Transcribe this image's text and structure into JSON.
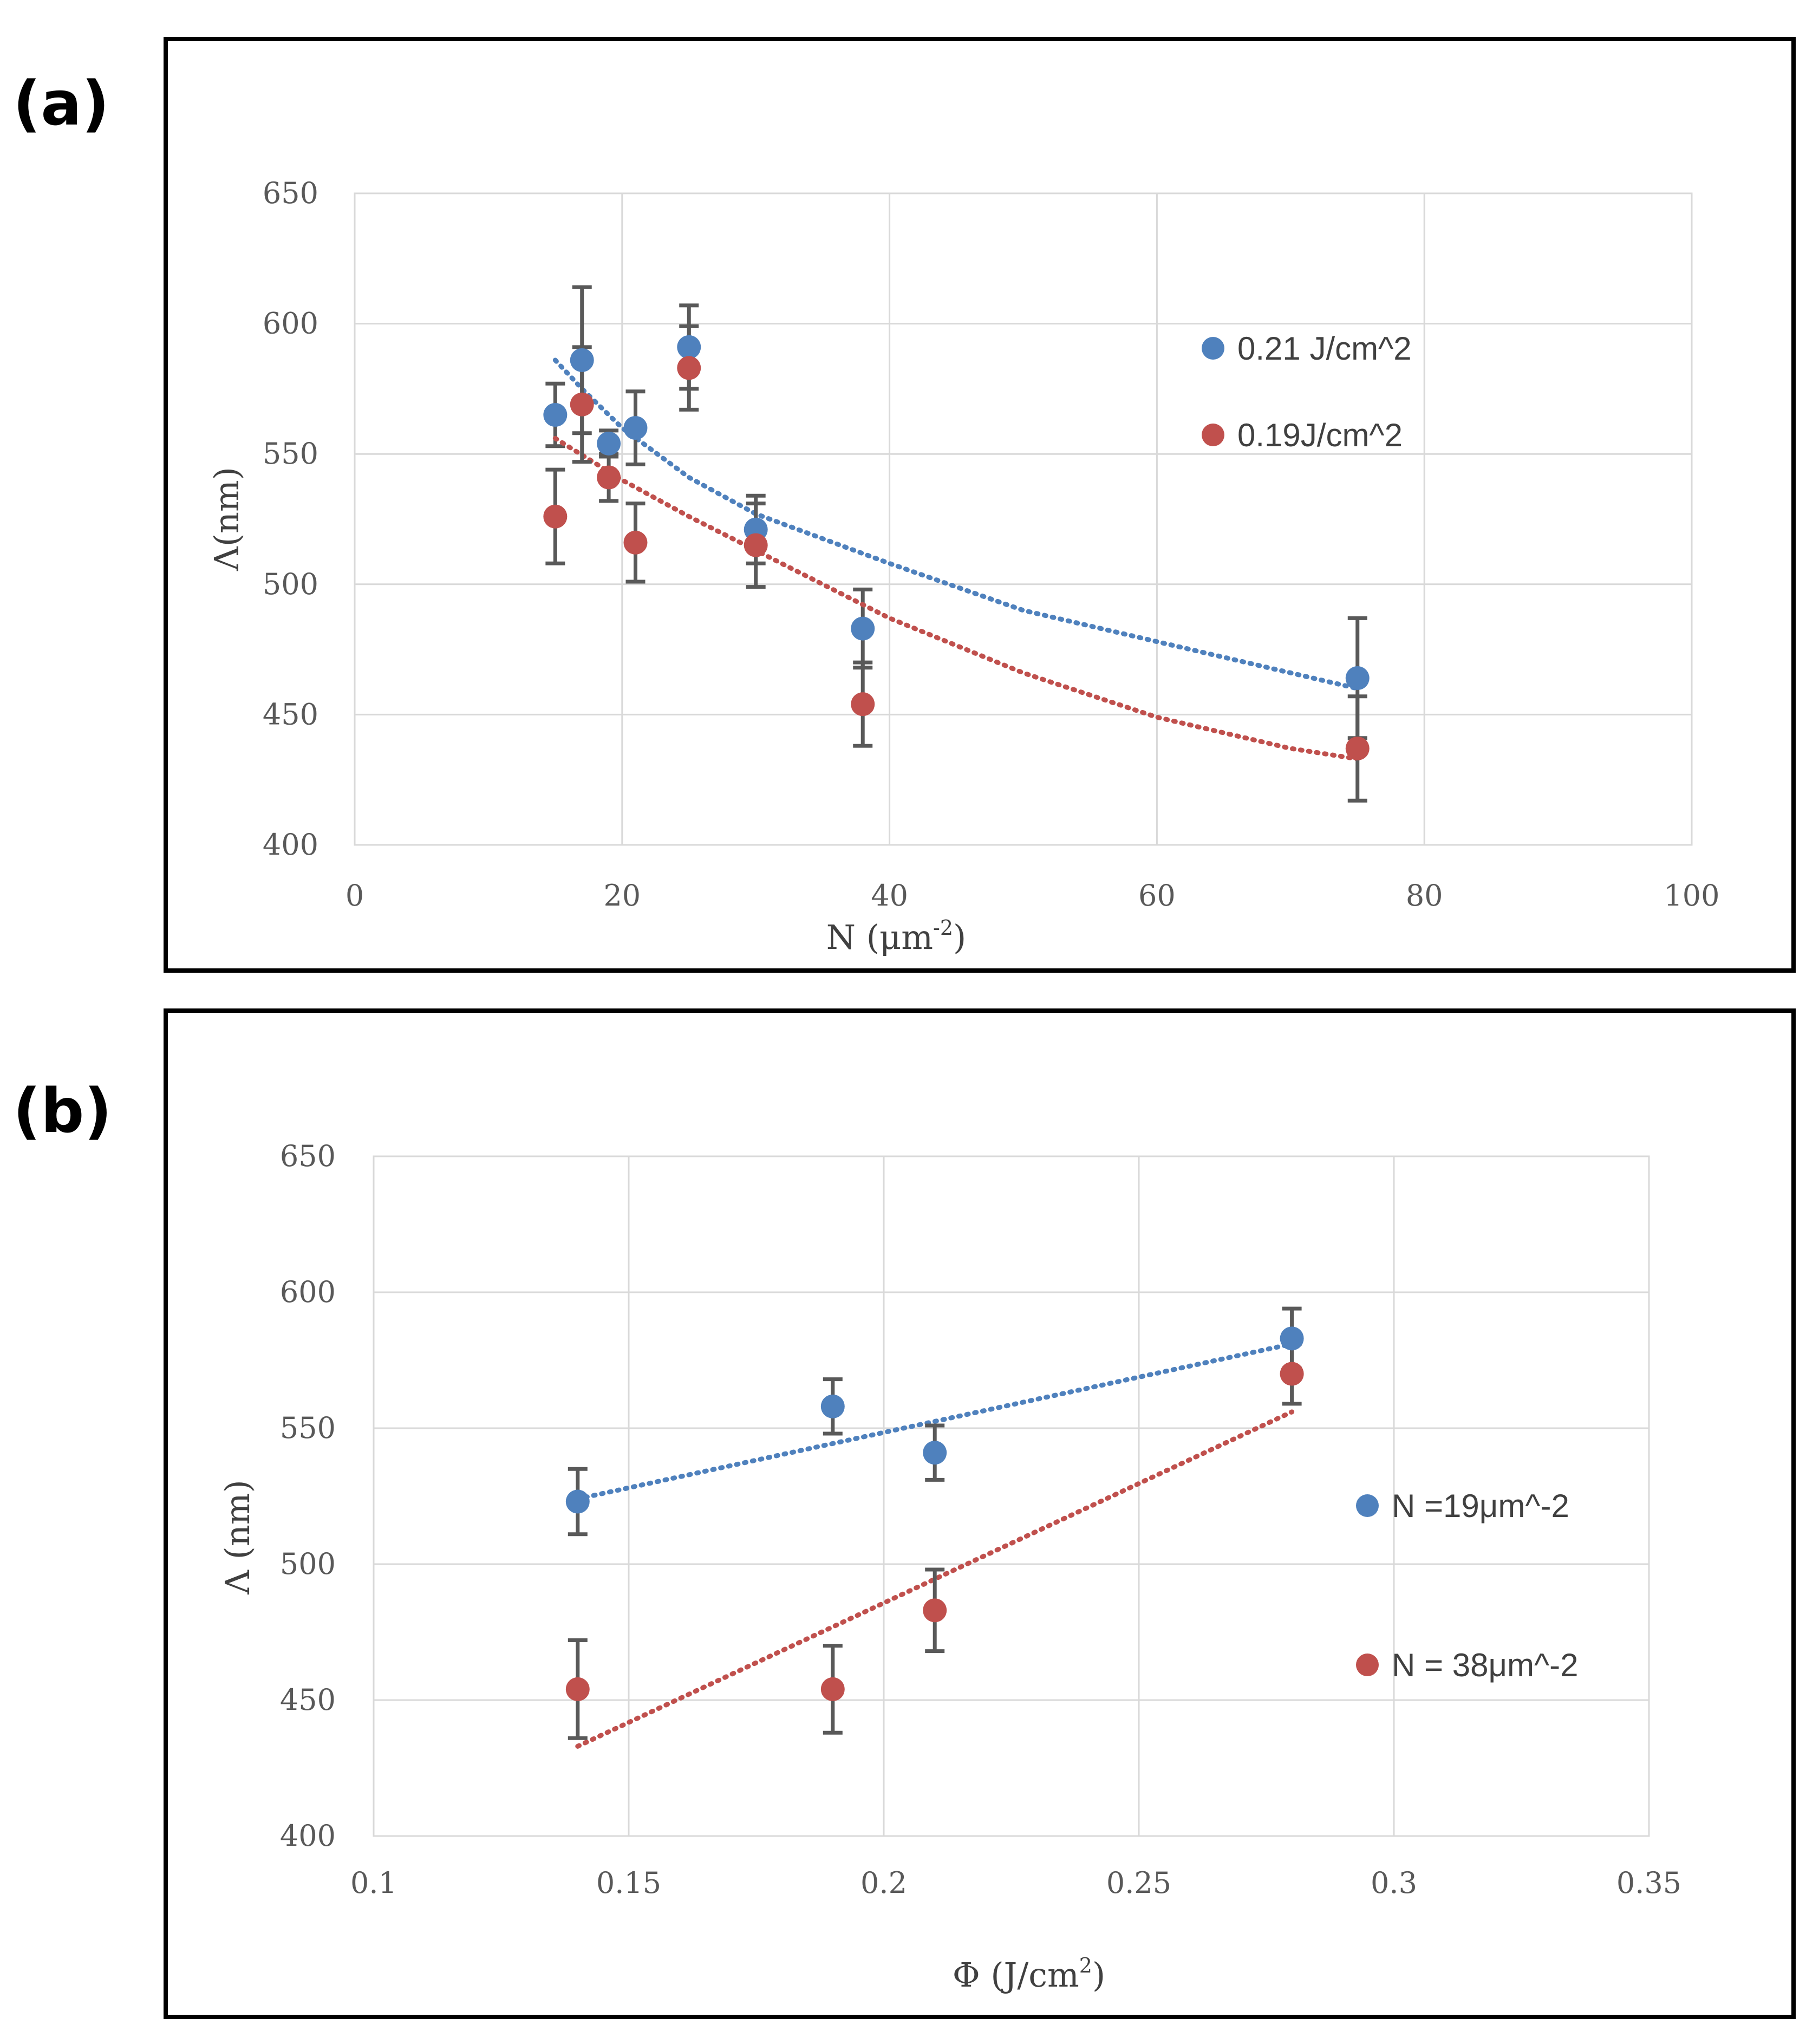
{
  "colors": {
    "blue": "#4f81bd",
    "red": "#c0504d",
    "error": "#595959"
  },
  "chart_data": [
    {
      "type": "scatter",
      "panel_label": "(a)",
      "xlabel_main": "N (μm",
      "xlabel_sup": "-2",
      "xlabel_end": ")",
      "ylabel": "Λ(nm)",
      "xlim": [
        0,
        100
      ],
      "ylim": [
        400,
        650
      ],
      "xticks": [
        0,
        20,
        40,
        60,
        80,
        100
      ],
      "yticks": [
        400,
        450,
        500,
        550,
        600,
        650
      ],
      "grid": true,
      "legend_position": "right",
      "series": [
        {
          "name": "0.21 J/cm^2",
          "color": "#4f81bd",
          "x": [
            15,
            17,
            19,
            21,
            25,
            30,
            38,
            75
          ],
          "y": [
            565,
            586,
            554,
            560,
            591,
            521,
            483,
            464
          ],
          "err_upper": [
            12,
            28,
            5,
            14,
            16,
            13,
            15,
            23
          ],
          "err_lower": [
            12,
            28,
            5,
            14,
            16,
            13,
            15,
            23
          ],
          "trend": {
            "kind": "power",
            "x": [
              15,
              17,
              20,
              25,
              30,
              40,
              50,
              60,
              75
            ],
            "y": [
              586,
              575,
              560,
              541,
              527,
              508,
              490,
              478,
              460
            ]
          }
        },
        {
          "name": "0.19J/cm^2",
          "color": "#c0504d",
          "x": [
            15,
            17,
            19,
            21,
            25,
            30,
            38,
            75
          ],
          "y": [
            526,
            569,
            541,
            516,
            583,
            515,
            454,
            437
          ],
          "err_upper": [
            18,
            22,
            9,
            15,
            16,
            16,
            16,
            20
          ],
          "err_lower": [
            18,
            22,
            9,
            15,
            16,
            16,
            16,
            20
          ],
          "trend": {
            "kind": "polynomial",
            "x": [
              15,
              20,
              25,
              30,
              40,
              50,
              60,
              70,
              75
            ],
            "y": [
              556,
              540,
              526,
              513,
              487,
              466,
              449,
              437,
              433
            ]
          }
        }
      ]
    },
    {
      "type": "scatter",
      "panel_label": "(b)",
      "xlabel_main": "Φ (J/cm",
      "xlabel_sup": "2",
      "xlabel_end": ")",
      "ylabel": "Λ  (nm)",
      "xlim": [
        0.1,
        0.35
      ],
      "ylim": [
        400,
        650
      ],
      "xticks": [
        "0.1",
        "0.15",
        "0.2",
        "0.25",
        "0.3",
        "0.35"
      ],
      "yticks": [
        400,
        450,
        500,
        550,
        600,
        650
      ],
      "grid": true,
      "legend_position": "right",
      "series": [
        {
          "name": "N =19μm^-2",
          "color": "#4f81bd",
          "x": [
            0.14,
            0.19,
            0.21,
            0.28
          ],
          "y": [
            523,
            558,
            541,
            583
          ],
          "err_upper": [
            12,
            10,
            10,
            11
          ],
          "err_lower": [
            12,
            10,
            10,
            11
          ],
          "trend": {
            "kind": "linear",
            "x": [
              0.14,
              0.28
            ],
            "y": [
              524,
              581
            ]
          }
        },
        {
          "name": "N = 38μm^-2",
          "color": "#c0504d",
          "x": [
            0.14,
            0.19,
            0.21,
            0.28
          ],
          "y": [
            454,
            454,
            483,
            570
          ],
          "err_upper": [
            18,
            16,
            15,
            11
          ],
          "err_lower": [
            18,
            16,
            15,
            11
          ],
          "trend": {
            "kind": "linear",
            "x": [
              0.14,
              0.28
            ],
            "y": [
              433,
              556
            ]
          }
        }
      ]
    }
  ]
}
